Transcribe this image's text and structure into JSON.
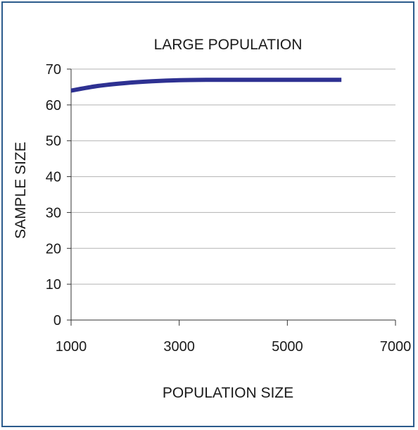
{
  "colors": {
    "frame": "#2b5b8c",
    "series": "#2e3192",
    "grid": "#b3b3b3",
    "axis": "#333333"
  },
  "chart_data": {
    "type": "line",
    "title": "LARGE POPULATION",
    "xlabel": "POPULATION SIZE",
    "ylabel": "SAMPLE SIZE",
    "xlim": [
      1000,
      7000
    ],
    "ylim": [
      0,
      70
    ],
    "x_ticks": [
      "1000",
      "3000",
      "5000",
      "7000"
    ],
    "y_ticks": [
      "0",
      "10",
      "20",
      "30",
      "40",
      "50",
      "60",
      "70"
    ],
    "grid": "horizontal",
    "series": [
      {
        "x": [
          1000,
          1500,
          2000,
          2500,
          3000,
          3500,
          4000,
          4500,
          5000,
          5500,
          6000
        ],
        "values": [
          64,
          65.3,
          66.1,
          66.6,
          66.9,
          67,
          67,
          67,
          67,
          67,
          67
        ]
      }
    ]
  }
}
